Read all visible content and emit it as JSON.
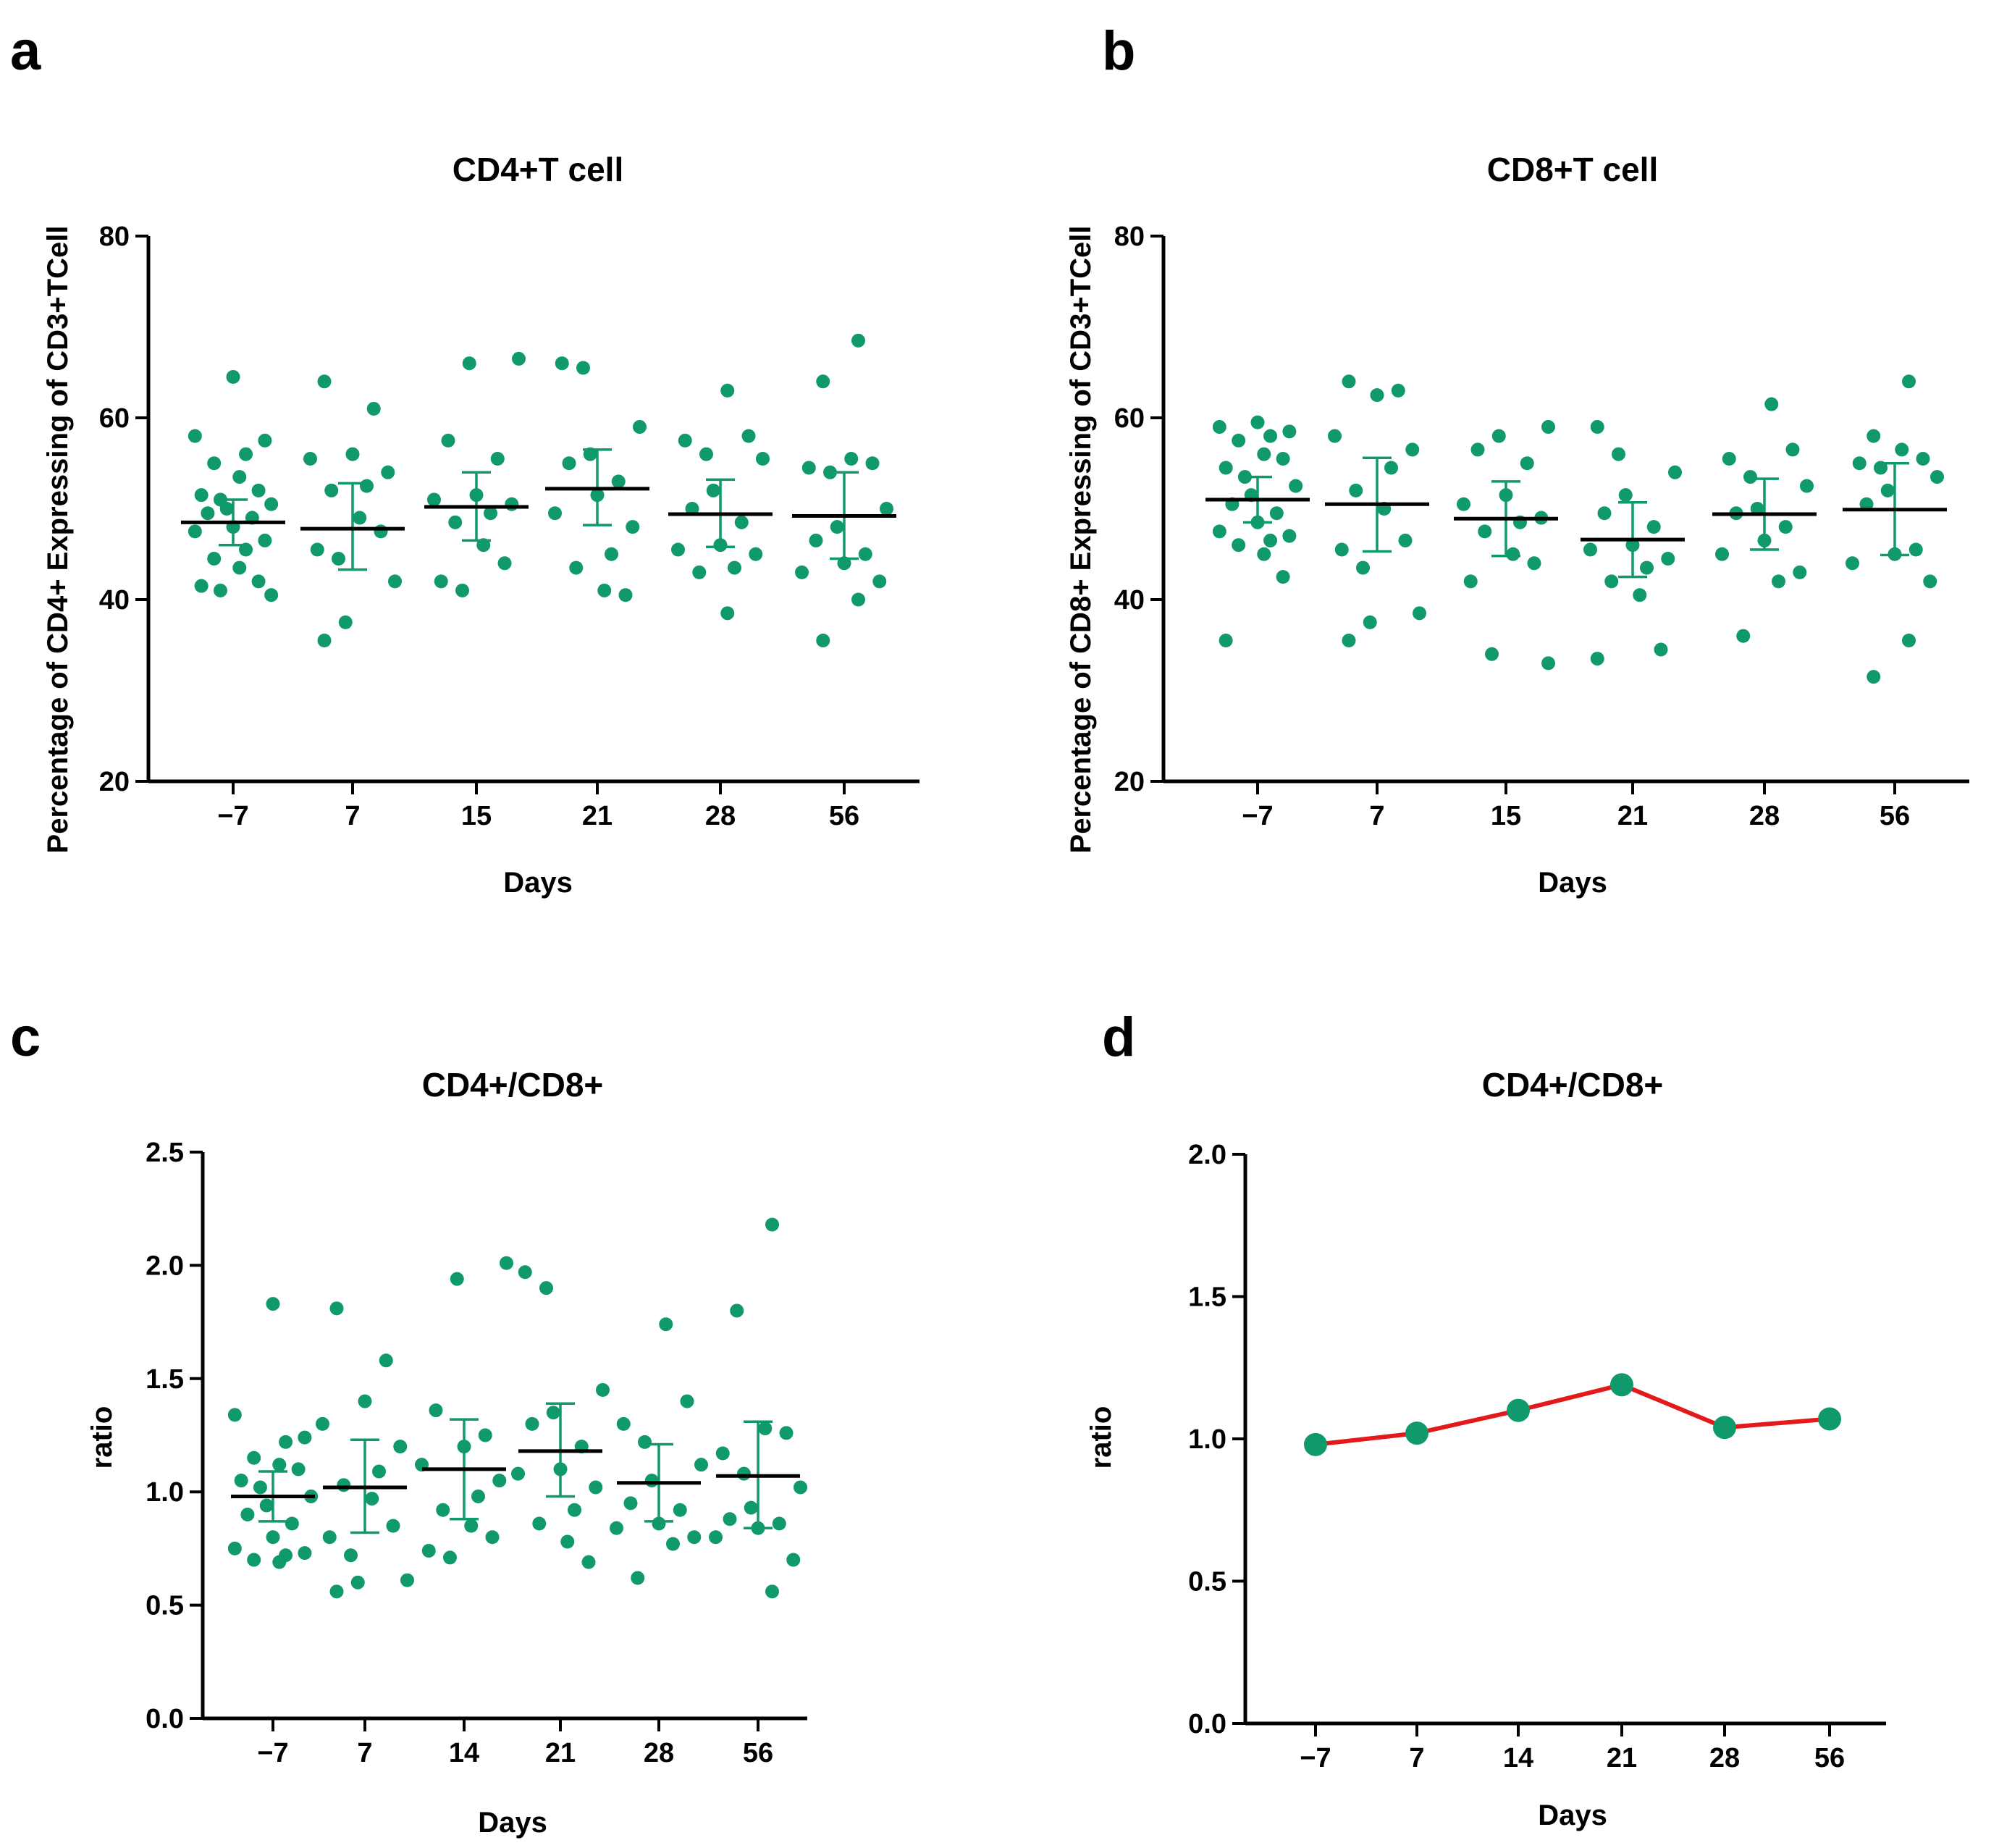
{
  "colors": {
    "dot": "#10996A",
    "mean_line": "#000000",
    "error_bar": "#10996A",
    "trend_line": "#E31A1C",
    "axis": "#000000"
  },
  "chart_data": [
    {
      "panel": "a",
      "type": "scatter",
      "title": "CD4+T cell",
      "xlabel": "Days",
      "ylabel": "Percentage of CD4+ Expressing of CD3+TCell",
      "ylim": [
        20,
        80
      ],
      "yticks": [
        "20",
        "40",
        "60",
        "80"
      ],
      "categories": [
        "−7",
        "7",
        "15",
        "21",
        "28",
        "56"
      ],
      "groups": [
        {
          "points": [
            64.5,
            58,
            57.5,
            56,
            55,
            53.5,
            52,
            51.5,
            51,
            50.5,
            50,
            49.5,
            49,
            48,
            47.5,
            46.5,
            45.5,
            44.5,
            43.5,
            42,
            41.5,
            41,
            40.5
          ],
          "mean": 48.5,
          "error": [
            46,
            51
          ]
        },
        {
          "points": [
            64,
            61,
            56,
            55.5,
            54,
            52.5,
            52,
            49,
            47.5,
            45.5,
            44.5,
            42,
            37.5,
            35.5
          ],
          "mean": 47.8,
          "error": [
            43.3,
            52.8
          ]
        },
        {
          "points": [
            66.5,
            66,
            57.5,
            55.5,
            51.5,
            51,
            50.5,
            49.5,
            48.5,
            46,
            44,
            42,
            41
          ],
          "mean": 50.2,
          "error": [
            46.5,
            54
          ]
        },
        {
          "points": [
            66,
            65.5,
            59,
            56,
            55,
            53,
            51.5,
            49.5,
            48,
            45,
            43.5,
            41,
            40.5
          ],
          "mean": 52.2,
          "error": [
            48.2,
            56.5
          ]
        },
        {
          "points": [
            63,
            58,
            57.5,
            56,
            55.5,
            52,
            50,
            48.5,
            46,
            45.5,
            45,
            43.5,
            43,
            38.5
          ],
          "mean": 49.4,
          "error": [
            45.8,
            53.2
          ]
        },
        {
          "points": [
            68.5,
            64,
            55.5,
            55,
            54.5,
            54,
            50,
            48,
            46.5,
            45,
            44,
            43,
            42,
            40,
            35.5
          ],
          "mean": 49.2,
          "error": [
            44.5,
            54
          ]
        }
      ]
    },
    {
      "panel": "b",
      "type": "scatter",
      "title": "CD8+T cell",
      "xlabel": "Days",
      "ylabel": "Percentage of CD8+ Expressing of CD3+TCell",
      "ylim": [
        20,
        80
      ],
      "yticks": [
        "20",
        "40",
        "60",
        "80"
      ],
      "categories": [
        "−7",
        "7",
        "15",
        "21",
        "28",
        "56"
      ],
      "groups": [
        {
          "points": [
            59.5,
            59,
            58.5,
            58,
            57.5,
            56,
            55.5,
            54.5,
            53.5,
            52.5,
            51.5,
            50.5,
            49.5,
            48.5,
            47.5,
            47,
            46.5,
            46,
            45,
            42.5,
            35.5
          ],
          "mean": 51,
          "error": [
            48.5,
            53.5
          ]
        },
        {
          "points": [
            64,
            63,
            62.5,
            58,
            56.5,
            54.5,
            52,
            50,
            46.5,
            45.5,
            43.5,
            38.5,
            37.5,
            35.5
          ],
          "mean": 50.5,
          "error": [
            45.3,
            55.6
          ]
        },
        {
          "points": [
            59,
            58,
            56.5,
            55,
            51.5,
            50.5,
            49,
            48.5,
            47.5,
            45,
            44,
            42,
            34,
            33
          ],
          "mean": 48.9,
          "error": [
            44.8,
            53
          ]
        },
        {
          "points": [
            59,
            56,
            54,
            51.5,
            49.5,
            48,
            46,
            45.5,
            44.5,
            43.5,
            42,
            40.5,
            34.5,
            33.5
          ],
          "mean": 46.6,
          "error": [
            42.5,
            50.7
          ]
        },
        {
          "points": [
            61.5,
            56.5,
            55.5,
            53.5,
            52.5,
            50,
            49.5,
            48,
            46.5,
            45,
            43,
            42,
            36
          ],
          "mean": 49.4,
          "error": [
            45.5,
            53.3
          ]
        },
        {
          "points": [
            64,
            58,
            56.5,
            55.5,
            55,
            54.5,
            53.5,
            52,
            50.5,
            45.5,
            45,
            44,
            42,
            35.5,
            31.5
          ],
          "mean": 49.9,
          "error": [
            44.9,
            55
          ]
        }
      ]
    },
    {
      "panel": "c",
      "type": "scatter",
      "title": "CD4+/CD8+",
      "xlabel": "Days",
      "ylabel": "ratio",
      "ylim": [
        0,
        2.5
      ],
      "yticks": [
        "0.0",
        "0.5",
        "1.0",
        "1.5",
        "2.0",
        "2.5"
      ],
      "categories": [
        "−7",
        "7",
        "14",
        "21",
        "28",
        "56"
      ],
      "groups": [
        {
          "points": [
            1.83,
            1.34,
            1.24,
            1.22,
            1.15,
            1.12,
            1.1,
            1.05,
            1.02,
            0.98,
            0.94,
            0.9,
            0.86,
            0.8,
            0.75,
            0.73,
            0.72,
            0.7,
            0.69
          ],
          "mean": 0.98,
          "error": [
            0.87,
            1.09
          ]
        },
        {
          "points": [
            1.81,
            1.58,
            1.4,
            1.3,
            1.2,
            1.09,
            1.03,
            0.97,
            0.85,
            0.8,
            0.72,
            0.61,
            0.6,
            0.56
          ],
          "mean": 1.02,
          "error": [
            0.82,
            1.23
          ]
        },
        {
          "points": [
            2.01,
            1.94,
            1.36,
            1.25,
            1.2,
            1.12,
            1.05,
            0.98,
            0.92,
            0.85,
            0.8,
            0.74,
            0.71
          ],
          "mean": 1.1,
          "error": [
            0.88,
            1.32
          ]
        },
        {
          "points": [
            1.97,
            1.9,
            1.45,
            1.35,
            1.3,
            1.2,
            1.1,
            1.08,
            1.02,
            0.92,
            0.86,
            0.78,
            0.69
          ],
          "mean": 1.18,
          "error": [
            0.98,
            1.39
          ]
        },
        {
          "points": [
            1.74,
            1.4,
            1.3,
            1.22,
            1.12,
            1.05,
            0.95,
            0.92,
            0.86,
            0.84,
            0.8,
            0.77,
            0.62
          ],
          "mean": 1.04,
          "error": [
            0.87,
            1.21
          ]
        },
        {
          "points": [
            2.18,
            1.8,
            1.28,
            1.26,
            1.17,
            1.08,
            1.02,
            0.93,
            0.88,
            0.86,
            0.84,
            0.8,
            0.7,
            0.56
          ],
          "mean": 1.07,
          "error": [
            0.84,
            1.31
          ]
        }
      ]
    },
    {
      "panel": "d",
      "type": "line",
      "title": "CD4+/CD8+",
      "xlabel": "Days",
      "ylabel": "ratio",
      "ylim": [
        0,
        2.0
      ],
      "yticks": [
        "0.0",
        "0.5",
        "1.0",
        "1.5",
        "2.0"
      ],
      "categories": [
        "−7",
        "7",
        "14",
        "21",
        "28",
        "56"
      ],
      "values": [
        0.98,
        1.02,
        1.1,
        1.19,
        1.04,
        1.07
      ]
    }
  ]
}
